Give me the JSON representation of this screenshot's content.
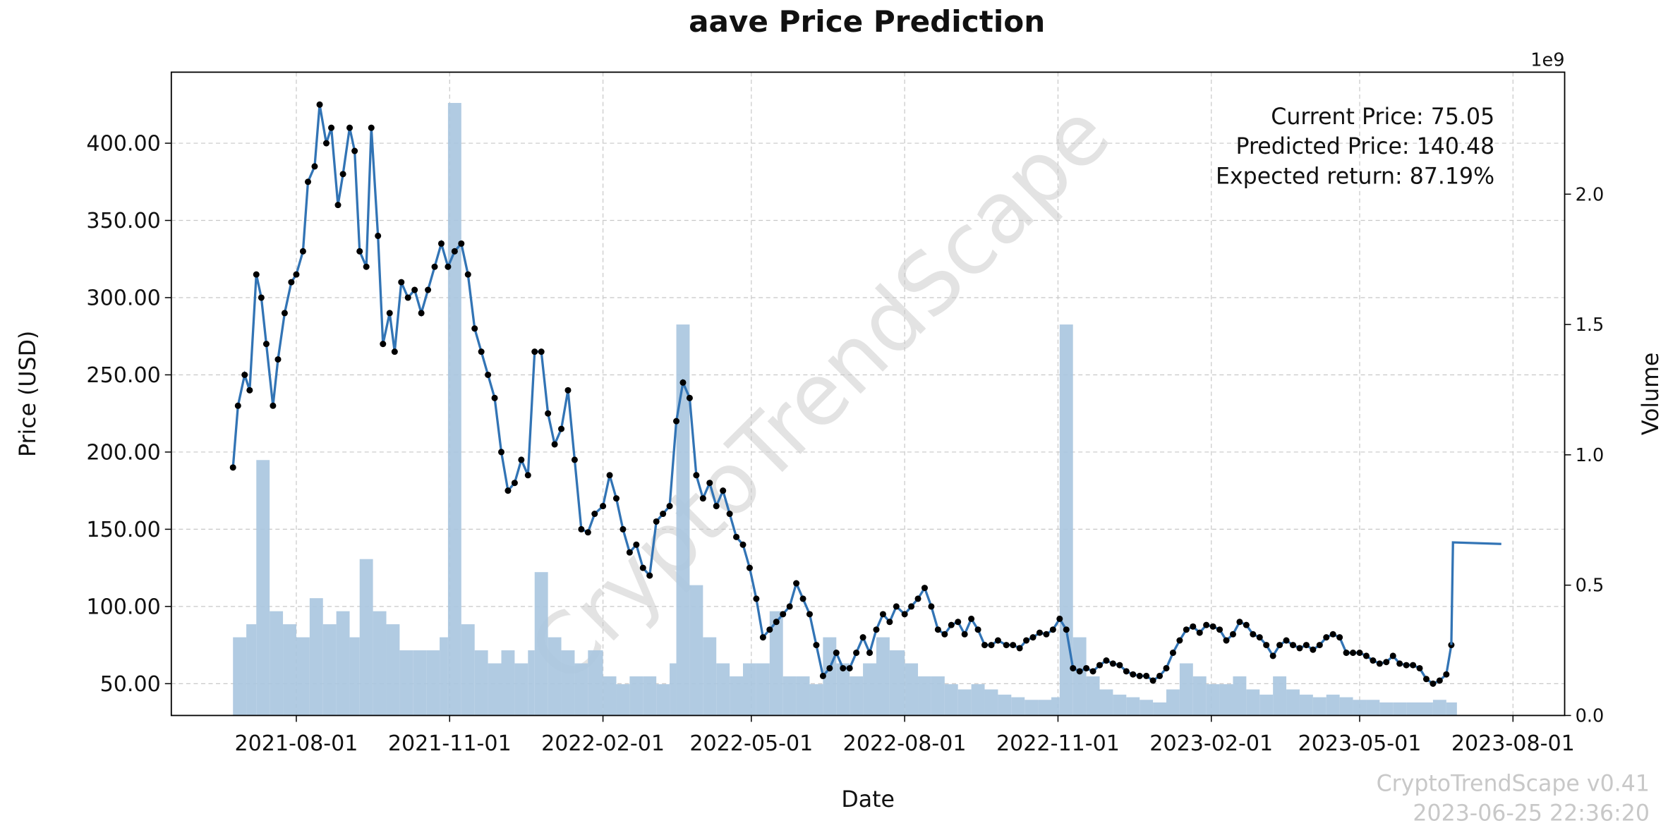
{
  "chart_data": {
    "type": "line",
    "title": "aave Price Prediction",
    "xlabel": "Date",
    "ylabel": "Price (USD)",
    "y2label": "Volume",
    "y2offset": "1e9",
    "annotations": [
      "Current Price: 75.05",
      "Predicted Price: 140.48",
      "Expected return: 87.19%"
    ],
    "watermark": "CryptoTrendScape",
    "footer": [
      "CryptoTrendScape v0.41",
      "2023-06-25 22:36:20"
    ],
    "grid": true,
    "xlim": [
      "2021-05-18",
      "2023-09-01"
    ],
    "xticks": [
      "2021-08-01",
      "2021-11-01",
      "2022-02-01",
      "2022-05-01",
      "2022-08-01",
      "2022-11-01",
      "2023-02-01",
      "2023-05-01",
      "2023-08-01"
    ],
    "ylim": [
      29.4,
      446
    ],
    "yticks": [
      {
        "value": 50,
        "label": "50.00"
      },
      {
        "value": 100,
        "label": "100.00"
      },
      {
        "value": 150,
        "label": "150.00"
      },
      {
        "value": 200,
        "label": "200.00"
      },
      {
        "value": 250,
        "label": "250.00"
      },
      {
        "value": 300,
        "label": "300.00"
      },
      {
        "value": 350,
        "label": "350.00"
      },
      {
        "value": 400,
        "label": "400.00"
      }
    ],
    "y2lim": [
      0,
      2468000000.0
    ],
    "y2ticks": [
      {
        "value": 0,
        "label": "0.0"
      },
      {
        "value": 500000000.0,
        "label": "0.5"
      },
      {
        "value": 1000000000.0,
        "label": "1.0"
      },
      {
        "value": 1500000000.0,
        "label": "1.5"
      },
      {
        "value": 2000000000.0,
        "label": "2.0"
      }
    ],
    "series": [
      {
        "type": "bar",
        "axis": "y2",
        "color": "#a9c5df",
        "x": [
          "2021-06-24",
          "2021-07-02",
          "2021-07-08",
          "2021-07-16",
          "2021-07-24",
          "2021-08-01",
          "2021-08-09",
          "2021-08-17",
          "2021-08-25",
          "2021-09-02",
          "2021-09-08",
          "2021-09-16",
          "2021-09-24",
          "2021-10-02",
          "2021-10-10",
          "2021-10-18",
          "2021-10-26",
          "2021-10-31",
          "2021-11-08",
          "2021-11-16",
          "2021-11-24",
          "2021-12-02",
          "2021-12-10",
          "2021-12-18",
          "2021-12-22",
          "2021-12-30",
          "2022-01-07",
          "2022-01-15",
          "2022-01-23",
          "2022-02-01",
          "2022-02-09",
          "2022-02-17",
          "2022-02-25",
          "2022-03-05",
          "2022-03-13",
          "2022-03-17",
          "2022-03-25",
          "2022-04-02",
          "2022-04-10",
          "2022-04-18",
          "2022-04-26",
          "2022-05-04",
          "2022-05-12",
          "2022-05-20",
          "2022-05-28",
          "2022-06-05",
          "2022-06-13",
          "2022-06-21",
          "2022-06-29",
          "2022-07-07",
          "2022-07-15",
          "2022-07-23",
          "2022-08-01",
          "2022-08-09",
          "2022-08-17",
          "2022-08-25",
          "2022-09-02",
          "2022-09-10",
          "2022-09-18",
          "2022-09-26",
          "2022-10-04",
          "2022-10-12",
          "2022-10-20",
          "2022-10-28",
          "2022-11-02",
          "2022-11-10",
          "2022-11-18",
          "2022-11-26",
          "2022-12-04",
          "2022-12-12",
          "2022-12-20",
          "2022-12-28",
          "2023-01-05",
          "2023-01-13",
          "2023-01-21",
          "2023-01-29",
          "2023-02-06",
          "2023-02-14",
          "2023-02-22",
          "2023-03-02",
          "2023-03-10",
          "2023-03-18",
          "2023-03-26",
          "2023-04-03",
          "2023-04-11",
          "2023-04-19",
          "2023-04-27",
          "2023-05-05",
          "2023-05-13",
          "2023-05-21",
          "2023-05-29",
          "2023-06-06",
          "2023-06-14",
          "2023-06-22"
        ],
        "values": [
          300000000.0,
          350000000.0,
          980000000.0,
          400000000.0,
          350000000.0,
          300000000.0,
          450000000.0,
          350000000.0,
          400000000.0,
          300000000.0,
          600000000.0,
          400000000.0,
          350000000.0,
          250000000.0,
          250000000.0,
          250000000.0,
          300000000.0,
          2350000000.0,
          350000000.0,
          250000000.0,
          200000000.0,
          250000000.0,
          200000000.0,
          250000000.0,
          550000000.0,
          300000000.0,
          250000000.0,
          200000000.0,
          250000000.0,
          150000000.0,
          120000000.0,
          150000000.0,
          150000000.0,
          120000000.0,
          200000000.0,
          1500000000.0,
          500000000.0,
          300000000.0,
          200000000.0,
          150000000.0,
          200000000.0,
          200000000.0,
          400000000.0,
          150000000.0,
          150000000.0,
          120000000.0,
          300000000.0,
          200000000.0,
          150000000.0,
          200000000.0,
          300000000.0,
          250000000.0,
          200000000.0,
          150000000.0,
          150000000.0,
          120000000.0,
          100000000.0,
          120000000.0,
          100000000.0,
          80000000.0,
          70000000.0,
          60000000.0,
          60000000.0,
          70000000.0,
          1500000000.0,
          300000000.0,
          150000000.0,
          100000000.0,
          80000000.0,
          70000000.0,
          60000000.0,
          50000000.0,
          100000000.0,
          200000000.0,
          150000000.0,
          120000000.0,
          120000000.0,
          150000000.0,
          100000000.0,
          80000000.0,
          150000000.0,
          100000000.0,
          80000000.0,
          70000000.0,
          80000000.0,
          70000000.0,
          60000000.0,
          60000000.0,
          50000000.0,
          50000000.0,
          50000000.0,
          50000000.0,
          60000000.0,
          50000000.0
        ]
      },
      {
        "type": "line",
        "markers": true,
        "color": "#3274b5",
        "x": [
          "2021-06-24",
          "2021-06-27",
          "2021-07-01",
          "2021-07-04",
          "2021-07-08",
          "2021-07-11",
          "2021-07-14",
          "2021-07-18",
          "2021-07-21",
          "2021-07-25",
          "2021-07-29",
          "2021-08-01",
          "2021-08-05",
          "2021-08-08",
          "2021-08-12",
          "2021-08-15",
          "2021-08-19",
          "2021-08-22",
          "2021-08-26",
          "2021-08-29",
          "2021-09-02",
          "2021-09-05",
          "2021-09-08",
          "2021-09-12",
          "2021-09-15",
          "2021-09-19",
          "2021-09-22",
          "2021-09-26",
          "2021-09-29",
          "2021-10-03",
          "2021-10-07",
          "2021-10-11",
          "2021-10-15",
          "2021-10-19",
          "2021-10-23",
          "2021-10-27",
          "2021-10-31",
          "2021-11-04",
          "2021-11-08",
          "2021-11-12",
          "2021-11-16",
          "2021-11-20",
          "2021-11-24",
          "2021-11-28",
          "2021-12-02",
          "2021-12-06",
          "2021-12-10",
          "2021-12-14",
          "2021-12-18",
          "2021-12-22",
          "2021-12-26",
          "2021-12-30",
          "2022-01-03",
          "2022-01-07",
          "2022-01-11",
          "2022-01-15",
          "2022-01-19",
          "2022-01-23",
          "2022-01-27",
          "2022-02-01",
          "2022-02-05",
          "2022-02-09",
          "2022-02-13",
          "2022-02-17",
          "2022-02-21",
          "2022-02-25",
          "2022-03-01",
          "2022-03-05",
          "2022-03-09",
          "2022-03-13",
          "2022-03-17",
          "2022-03-21",
          "2022-03-25",
          "2022-03-29",
          "2022-04-02",
          "2022-04-06",
          "2022-04-10",
          "2022-04-14",
          "2022-04-18",
          "2022-04-22",
          "2022-04-26",
          "2022-04-30",
          "2022-05-04",
          "2022-05-08",
          "2022-05-12",
          "2022-05-16",
          "2022-05-20",
          "2022-05-24",
          "2022-05-28",
          "2022-06-01",
          "2022-06-05",
          "2022-06-09",
          "2022-06-13",
          "2022-06-17",
          "2022-06-21",
          "2022-06-25",
          "2022-06-29",
          "2022-07-03",
          "2022-07-07",
          "2022-07-11",
          "2022-07-15",
          "2022-07-19",
          "2022-07-23",
          "2022-07-27",
          "2022-08-01",
          "2022-08-05",
          "2022-08-09",
          "2022-08-13",
          "2022-08-17",
          "2022-08-21",
          "2022-08-25",
          "2022-08-29",
          "2022-09-02",
          "2022-09-06",
          "2022-09-10",
          "2022-09-14",
          "2022-09-18",
          "2022-09-22",
          "2022-09-26",
          "2022-10-01",
          "2022-10-05",
          "2022-10-09",
          "2022-10-13",
          "2022-10-17",
          "2022-10-21",
          "2022-10-25",
          "2022-10-29",
          "2022-11-02",
          "2022-11-06",
          "2022-11-10",
          "2022-11-14",
          "2022-11-18",
          "2022-11-22",
          "2022-11-26",
          "2022-11-30",
          "2022-12-04",
          "2022-12-08",
          "2022-12-12",
          "2022-12-16",
          "2022-12-20",
          "2022-12-24",
          "2022-12-28",
          "2023-01-01",
          "2023-01-05",
          "2023-01-09",
          "2023-01-13",
          "2023-01-17",
          "2023-01-21",
          "2023-01-25",
          "2023-01-29",
          "2023-02-02",
          "2023-02-06",
          "2023-02-10",
          "2023-02-14",
          "2023-02-18",
          "2023-02-22",
          "2023-02-26",
          "2023-03-02",
          "2023-03-06",
          "2023-03-10",
          "2023-03-14",
          "2023-03-18",
          "2023-03-22",
          "2023-03-26",
          "2023-03-30",
          "2023-04-03",
          "2023-04-07",
          "2023-04-11",
          "2023-04-15",
          "2023-04-19",
          "2023-04-23",
          "2023-04-27",
          "2023-05-01",
          "2023-05-05",
          "2023-05-09",
          "2023-05-13",
          "2023-05-17",
          "2023-05-21",
          "2023-05-25",
          "2023-05-29",
          "2023-06-02",
          "2023-06-06",
          "2023-06-10",
          "2023-06-14",
          "2023-06-18",
          "2023-06-22",
          "2023-06-25"
        ],
        "values": [
          190,
          230,
          250,
          240,
          315,
          300,
          270,
          230,
          260,
          290,
          310,
          315,
          330,
          375,
          385,
          425,
          400,
          410,
          360,
          380,
          410,
          395,
          330,
          320,
          410,
          340,
          270,
          290,
          265,
          310,
          300,
          305,
          290,
          305,
          320,
          335,
          320,
          330,
          335,
          315,
          280,
          265,
          250,
          235,
          200,
          175,
          180,
          195,
          185,
          265,
          265,
          225,
          205,
          215,
          240,
          195,
          150,
          148,
          160,
          165,
          185,
          170,
          150,
          135,
          140,
          125,
          120,
          155,
          160,
          165,
          220,
          245,
          235,
          185,
          170,
          180,
          165,
          175,
          160,
          145,
          140,
          125,
          105,
          80,
          85,
          90,
          95,
          100,
          115,
          105,
          95,
          75,
          55,
          60,
          70,
          60,
          60,
          70,
          80,
          70,
          85,
          95,
          90,
          100,
          95,
          100,
          105,
          112,
          100,
          85,
          82,
          88,
          90,
          82,
          92,
          85,
          75,
          75,
          78,
          75,
          75,
          73,
          78,
          80,
          83,
          82,
          85,
          92,
          85,
          60,
          58,
          60,
          58,
          62,
          65,
          63,
          62,
          58,
          56,
          55,
          55,
          52,
          55,
          60,
          70,
          78,
          85,
          87,
          83,
          88,
          87,
          85,
          78,
          82,
          90,
          88,
          82,
          80,
          75,
          68,
          75,
          78,
          75,
          73,
          75,
          72,
          75,
          80,
          82,
          80,
          70,
          70,
          70,
          68,
          65,
          63,
          64,
          68,
          63,
          62,
          62,
          60,
          53,
          50,
          52,
          56,
          75.05
        ]
      },
      {
        "type": "line",
        "markers": false,
        "color": "#3274b5",
        "x": [
          "2023-06-25",
          "2023-06-26",
          "2023-07-25"
        ],
        "values": [
          75.05,
          141.5,
          140.48
        ]
      }
    ]
  }
}
